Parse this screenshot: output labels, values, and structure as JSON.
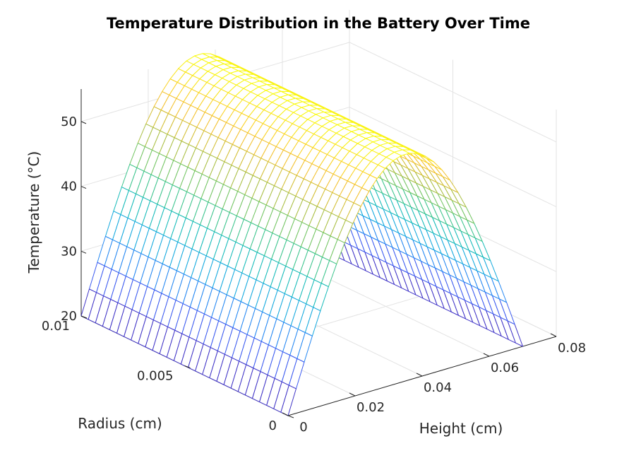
{
  "chart_data": {
    "type": "surface-mesh",
    "title": "Temperature Distribution in the Battery Over Time",
    "xlabel": "Height (cm)",
    "ylabel": "Radius (cm)",
    "zlabel": "Temperature (°C)",
    "xlim": [
      0,
      0.08
    ],
    "ylim": [
      0,
      0.01
    ],
    "zlim": [
      20,
      55
    ],
    "x_ticks": [
      0,
      0.02,
      0.04,
      0.06,
      0.08
    ],
    "x_tick_labels": [
      "0",
      "0.02",
      "0.04",
      "0.06",
      "0.08"
    ],
    "y_ticks": [
      0,
      0.005,
      0.01
    ],
    "y_tick_labels": [
      "0",
      "0.005",
      "0.01"
    ],
    "z_ticks": [
      20,
      30,
      40,
      50
    ],
    "z_tick_labels": [
      "20",
      "30",
      "40",
      "50"
    ],
    "grid": true,
    "colormap": "parula",
    "mesh_x_count": 30,
    "mesh_y_count": 30,
    "x_extent": 0.07,
    "surface": {
      "description": "T(x, r) = T_min + (T_max - T_min) * sin(pi * x / x_extent), constant along radius",
      "t_min": 20,
      "t_max": 55
    }
  }
}
